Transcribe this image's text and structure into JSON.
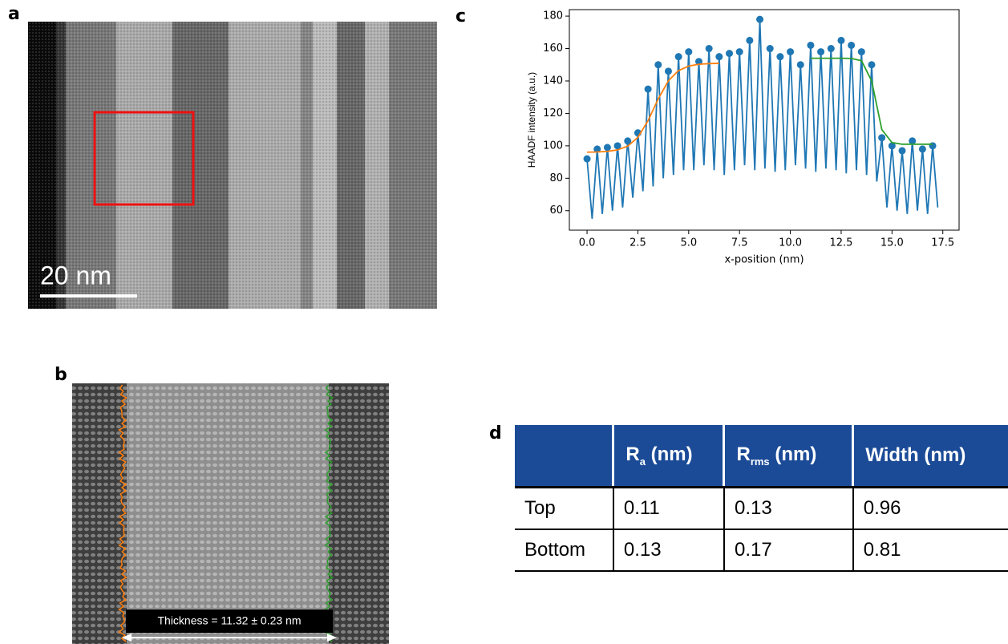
{
  "panel_a": {
    "label": "a",
    "scale_bar": "20 nm"
  },
  "panel_b": {
    "label": "b",
    "annotation": "Thickness = 11.32 ± 0.23 nm"
  },
  "panel_c": {
    "label": "c"
  },
  "panel_d": {
    "label": "d"
  },
  "chart_data": {
    "type": "line",
    "xlabel": "x-position (nm)",
    "ylabel": "HAADF intensity (a.u.)",
    "xlim": [
      -0.87,
      18.3
    ],
    "ylim": [
      48,
      184
    ],
    "xticks": [
      {
        "value": 0,
        "label": "0.0"
      },
      2.5,
      {
        "value": 5,
        "label": "5.0"
      },
      7.5,
      {
        "value": 10,
        "label": "10.0"
      },
      12.5,
      {
        "value": 15,
        "label": "15.0"
      },
      17.5
    ],
    "yticks": [
      60,
      80,
      100,
      120,
      140,
      160,
      180
    ],
    "series": [
      {
        "mode": "lines",
        "color": "#1f77b4",
        "x": [
          0,
          0.25,
          0.5,
          0.75,
          1,
          1.25,
          1.5,
          1.75,
          2,
          2.25,
          2.5,
          2.75,
          3,
          3.25,
          3.5,
          3.75,
          4,
          4.25,
          4.5,
          4.75,
          5,
          5.25,
          5.5,
          5.75,
          6,
          6.25,
          6.5,
          6.75,
          7,
          7.25,
          7.5,
          7.75,
          8,
          8.25,
          8.5,
          8.75,
          9,
          9.25,
          9.5,
          9.75,
          10,
          10.25,
          10.5,
          10.75,
          11,
          11.25,
          11.5,
          11.75,
          12,
          12.25,
          12.5,
          12.75,
          13,
          13.25,
          13.5,
          13.75,
          14,
          14.25,
          14.5,
          14.75,
          15,
          15.25,
          15.5,
          15.75,
          16,
          16.25,
          16.5,
          16.75,
          17,
          17.25
        ],
        "values": [
          92,
          55,
          98,
          58,
          99,
          60,
          100,
          62,
          103,
          68,
          108,
          72,
          135,
          75,
          150,
          80,
          146,
          82,
          155,
          85,
          158,
          85,
          152,
          88,
          160,
          85,
          155,
          82,
          157,
          85,
          158,
          88,
          165,
          85,
          178,
          86,
          160,
          84,
          155,
          85,
          158,
          88,
          150,
          86,
          162,
          84,
          158,
          86,
          160,
          85,
          165,
          83,
          162,
          85,
          158,
          82,
          150,
          78,
          105,
          62,
          100,
          60,
          97,
          58,
          103,
          60,
          98,
          58,
          100,
          62
        ]
      },
      {
        "mode": "markers",
        "color": "#1f77b4",
        "x": [
          0,
          0.5,
          1,
          1.5,
          2,
          2.5,
          3,
          3.5,
          4,
          4.5,
          5,
          5.5,
          6,
          6.5,
          7,
          7.5,
          8,
          8.5,
          9,
          9.5,
          10,
          10.5,
          11,
          11.5,
          12,
          12.5,
          13,
          13.5,
          14,
          14.5,
          15,
          15.5,
          16,
          16.5,
          17
        ],
        "values": [
          92,
          98,
          99,
          100,
          103,
          108,
          135,
          150,
          146,
          155,
          158,
          152,
          160,
          155,
          157,
          158,
          165,
          178,
          160,
          155,
          158,
          150,
          162,
          158,
          160,
          165,
          162,
          158,
          150,
          105,
          100,
          97,
          103,
          98,
          100
        ]
      },
      {
        "mode": "lines",
        "color": "#ff7f0e",
        "x": [
          0,
          0.5,
          1,
          1.5,
          2,
          2.5,
          3,
          3.5,
          4,
          4.5,
          5,
          5.5,
          6,
          6.5
        ],
        "values": [
          96.1,
          96.2,
          96.6,
          97.5,
          99.8,
          105.2,
          115.5,
          128.9,
          140.1,
          146.4,
          149.2,
          150.3,
          150.7,
          150.9
        ]
      },
      {
        "mode": "lines",
        "color": "#2ca02c",
        "x": [
          11,
          11.5,
          12,
          12.5,
          13,
          13.5,
          14,
          14.5,
          15,
          15.5,
          16,
          16.5,
          17
        ],
        "values": [
          154,
          154,
          154,
          154,
          153.9,
          152.5,
          140,
          110,
          102,
          101,
          101,
          101,
          101
        ]
      }
    ]
  },
  "table": {
    "header": [
      {
        "text": "R",
        "sub": "a",
        "unit": "(nm)"
      },
      {
        "text": "R",
        "sub": "rms",
        "unit": "(nm)"
      },
      {
        "text": "Width (nm)"
      }
    ],
    "rows": [
      [
        "Top",
        0.11,
        0.13,
        0.96
      ],
      [
        "Bottom",
        0.13,
        0.17,
        0.81
      ]
    ]
  }
}
